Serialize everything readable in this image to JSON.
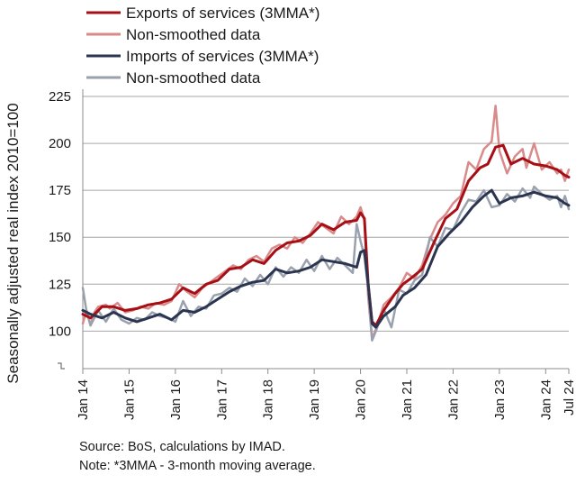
{
  "chart_data": {
    "type": "line",
    "title": "",
    "xlabel": "",
    "ylabel": "Seasonally adjusted real index 2010=100",
    "ylim": [
      80,
      225
    ],
    "yticks": [
      100,
      125,
      150,
      175,
      200,
      225
    ],
    "xlim": [
      "2014-01",
      "2024-07"
    ],
    "xticks": [
      {
        "date": "2014-01",
        "label": "Jan 14"
      },
      {
        "date": "2015-01",
        "label": "Jan 15"
      },
      {
        "date": "2016-01",
        "label": "Jan 16"
      },
      {
        "date": "2017-01",
        "label": "Jan 17"
      },
      {
        "date": "2018-01",
        "label": "Jan 18"
      },
      {
        "date": "2019-01",
        "label": "Jan 19"
      },
      {
        "date": "2020-01",
        "label": "Jan 20"
      },
      {
        "date": "2021-01",
        "label": "Jan 21"
      },
      {
        "date": "2022-01",
        "label": "Jan 22"
      },
      {
        "date": "2023-01",
        "label": "Jan 23"
      },
      {
        "date": "2024-01",
        "label": "Jan 24"
      },
      {
        "date": "2024-07",
        "label": "Jul 24"
      }
    ],
    "legend_position": "top-left",
    "grid": "horizontal",
    "series": [
      {
        "name": "Exports of services (3MMA*)",
        "color": "#a50f15",
        "width": 3,
        "points": [
          [
            "2014-01",
            109
          ],
          [
            "2014-03",
            107
          ],
          [
            "2014-06",
            113
          ],
          [
            "2014-09",
            113
          ],
          [
            "2014-12",
            111
          ],
          [
            "2015-03",
            112
          ],
          [
            "2015-06",
            114
          ],
          [
            "2015-09",
            115
          ],
          [
            "2015-12",
            117
          ],
          [
            "2016-03",
            123
          ],
          [
            "2016-06",
            120
          ],
          [
            "2016-09",
            125
          ],
          [
            "2016-12",
            127
          ],
          [
            "2017-03",
            133
          ],
          [
            "2017-06",
            134
          ],
          [
            "2017-09",
            138
          ],
          [
            "2017-12",
            136
          ],
          [
            "2018-03",
            143
          ],
          [
            "2018-06",
            147
          ],
          [
            "2018-09",
            148
          ],
          [
            "2018-12",
            151
          ],
          [
            "2019-03",
            157
          ],
          [
            "2019-06",
            154
          ],
          [
            "2019-09",
            158
          ],
          [
            "2019-12",
            159
          ],
          [
            "2020-01",
            163
          ],
          [
            "2020-02",
            160
          ],
          [
            "2020-03",
            125
          ],
          [
            "2020-04",
            105
          ],
          [
            "2020-05",
            103
          ],
          [
            "2020-07",
            111
          ],
          [
            "2020-10",
            120
          ],
          [
            "2020-12",
            125
          ],
          [
            "2021-02",
            128
          ],
          [
            "2021-05",
            133
          ],
          [
            "2021-08",
            147
          ],
          [
            "2021-11",
            160
          ],
          [
            "2022-02",
            165
          ],
          [
            "2022-05",
            180
          ],
          [
            "2022-08",
            187
          ],
          [
            "2022-10",
            189
          ],
          [
            "2022-12",
            198
          ],
          [
            "2023-02",
            199
          ],
          [
            "2023-04",
            189
          ],
          [
            "2023-07",
            192
          ],
          [
            "2023-10",
            189
          ],
          [
            "2024-01",
            188
          ],
          [
            "2024-04",
            186
          ],
          [
            "2024-06",
            183
          ],
          [
            "2024-07",
            182
          ]
        ]
      },
      {
        "name": "Non-smoothed data",
        "color": "#d98a8a",
        "width": 2.5,
        "points": [
          [
            "2014-01",
            104
          ],
          [
            "2014-02",
            111
          ],
          [
            "2014-03",
            103
          ],
          [
            "2014-04",
            110
          ],
          [
            "2014-05",
            113
          ],
          [
            "2014-07",
            114
          ],
          [
            "2014-08",
            112
          ],
          [
            "2014-10",
            115
          ],
          [
            "2014-12",
            110
          ],
          [
            "2015-02",
            111
          ],
          [
            "2015-04",
            113
          ],
          [
            "2015-06",
            112
          ],
          [
            "2015-08",
            115
          ],
          [
            "2015-10",
            114
          ],
          [
            "2015-12",
            116
          ],
          [
            "2016-02",
            125
          ],
          [
            "2016-04",
            121
          ],
          [
            "2016-06",
            118
          ],
          [
            "2016-08",
            123
          ],
          [
            "2016-10",
            126
          ],
          [
            "2016-12",
            129
          ],
          [
            "2017-02",
            132
          ],
          [
            "2017-04",
            135
          ],
          [
            "2017-06",
            133
          ],
          [
            "2017-08",
            138
          ],
          [
            "2017-10",
            140
          ],
          [
            "2017-12",
            137
          ],
          [
            "2018-02",
            144
          ],
          [
            "2018-04",
            146
          ],
          [
            "2018-06",
            144
          ],
          [
            "2018-08",
            150
          ],
          [
            "2018-10",
            147
          ],
          [
            "2018-12",
            152
          ],
          [
            "2019-02",
            158
          ],
          [
            "2019-04",
            155
          ],
          [
            "2019-06",
            152
          ],
          [
            "2019-08",
            161
          ],
          [
            "2019-10",
            157
          ],
          [
            "2019-12",
            161
          ],
          [
            "2020-01",
            166
          ],
          [
            "2020-02",
            159
          ],
          [
            "2020-03",
            118
          ],
          [
            "2020-04",
            96
          ],
          [
            "2020-05",
            101
          ],
          [
            "2020-07",
            114
          ],
          [
            "2020-09",
            118
          ],
          [
            "2020-11",
            123
          ],
          [
            "2021-01",
            131
          ],
          [
            "2021-03",
            128
          ],
          [
            "2021-05",
            135
          ],
          [
            "2021-07",
            149
          ],
          [
            "2021-09",
            158
          ],
          [
            "2021-11",
            162
          ],
          [
            "2022-01",
            168
          ],
          [
            "2022-03",
            172
          ],
          [
            "2022-05",
            190
          ],
          [
            "2022-07",
            186
          ],
          [
            "2022-09",
            197
          ],
          [
            "2022-11",
            201
          ],
          [
            "2022-12",
            220
          ],
          [
            "2023-01",
            196
          ],
          [
            "2023-03",
            184
          ],
          [
            "2023-05",
            193
          ],
          [
            "2023-07",
            197
          ],
          [
            "2023-08",
            187
          ],
          [
            "2023-10",
            200
          ],
          [
            "2023-12",
            186
          ],
          [
            "2024-02",
            190
          ],
          [
            "2024-04",
            184
          ],
          [
            "2024-05",
            186
          ],
          [
            "2024-06",
            180
          ],
          [
            "2024-07",
            186
          ]
        ]
      },
      {
        "name": "Imports of services (3MMA*)",
        "color": "#2b3550",
        "width": 3,
        "points": [
          [
            "2014-01",
            111
          ],
          [
            "2014-03",
            109
          ],
          [
            "2014-06",
            107
          ],
          [
            "2014-09",
            110
          ],
          [
            "2014-12",
            107
          ],
          [
            "2015-03",
            105
          ],
          [
            "2015-06",
            107
          ],
          [
            "2015-09",
            109
          ],
          [
            "2015-12",
            106
          ],
          [
            "2016-03",
            111
          ],
          [
            "2016-06",
            110
          ],
          [
            "2016-09",
            113
          ],
          [
            "2016-12",
            117
          ],
          [
            "2017-03",
            121
          ],
          [
            "2017-06",
            124
          ],
          [
            "2017-09",
            126
          ],
          [
            "2017-12",
            127
          ],
          [
            "2018-03",
            133
          ],
          [
            "2018-06",
            131
          ],
          [
            "2018-09",
            132
          ],
          [
            "2018-12",
            134
          ],
          [
            "2019-03",
            138
          ],
          [
            "2019-06",
            137
          ],
          [
            "2019-09",
            136
          ],
          [
            "2019-12",
            134
          ],
          [
            "2020-01",
            142
          ],
          [
            "2020-02",
            143
          ],
          [
            "2020-03",
            125
          ],
          [
            "2020-04",
            104
          ],
          [
            "2020-05",
            102
          ],
          [
            "2020-07",
            108
          ],
          [
            "2020-10",
            113
          ],
          [
            "2020-12",
            119
          ],
          [
            "2021-03",
            123
          ],
          [
            "2021-06",
            130
          ],
          [
            "2021-09",
            145
          ],
          [
            "2021-12",
            152
          ],
          [
            "2022-03",
            158
          ],
          [
            "2022-06",
            166
          ],
          [
            "2022-09",
            172
          ],
          [
            "2022-11",
            175
          ],
          [
            "2023-01",
            168
          ],
          [
            "2023-04",
            171
          ],
          [
            "2023-07",
            172
          ],
          [
            "2023-10",
            174
          ],
          [
            "2024-01",
            172
          ],
          [
            "2024-04",
            171
          ],
          [
            "2024-06",
            168
          ],
          [
            "2024-07",
            167
          ]
        ]
      },
      {
        "name": "Non-smoothed data",
        "color": "#9aa1ae",
        "width": 2.5,
        "points": [
          [
            "2014-01",
            123
          ],
          [
            "2014-02",
            110
          ],
          [
            "2014-03",
            103
          ],
          [
            "2014-05",
            111
          ],
          [
            "2014-07",
            105
          ],
          [
            "2014-09",
            112
          ],
          [
            "2014-11",
            106
          ],
          [
            "2015-01",
            104
          ],
          [
            "2015-03",
            107
          ],
          [
            "2015-05",
            106
          ],
          [
            "2015-07",
            110
          ],
          [
            "2015-09",
            108
          ],
          [
            "2015-11",
            107
          ],
          [
            "2016-01",
            105
          ],
          [
            "2016-03",
            116
          ],
          [
            "2016-05",
            108
          ],
          [
            "2016-07",
            113
          ],
          [
            "2016-09",
            112
          ],
          [
            "2016-11",
            119
          ],
          [
            "2017-01",
            120
          ],
          [
            "2017-03",
            123
          ],
          [
            "2017-05",
            121
          ],
          [
            "2017-07",
            128
          ],
          [
            "2017-09",
            124
          ],
          [
            "2017-11",
            130
          ],
          [
            "2018-01",
            125
          ],
          [
            "2018-03",
            134
          ],
          [
            "2018-05",
            129
          ],
          [
            "2018-07",
            134
          ],
          [
            "2018-09",
            131
          ],
          [
            "2018-11",
            138
          ],
          [
            "2019-01",
            132
          ],
          [
            "2019-03",
            140
          ],
          [
            "2019-05",
            133
          ],
          [
            "2019-07",
            139
          ],
          [
            "2019-09",
            135
          ],
          [
            "2019-11",
            131
          ],
          [
            "2019-12",
            157
          ],
          [
            "2020-01",
            148
          ],
          [
            "2020-02",
            140
          ],
          [
            "2020-03",
            122
          ],
          [
            "2020-04",
            95
          ],
          [
            "2020-05",
            100
          ],
          [
            "2020-07",
            112
          ],
          [
            "2020-09",
            102
          ],
          [
            "2020-11",
            122
          ],
          [
            "2021-01",
            120
          ],
          [
            "2021-03",
            127
          ],
          [
            "2021-05",
            130
          ],
          [
            "2021-07",
            150
          ],
          [
            "2021-09",
            145
          ],
          [
            "2021-11",
            155
          ],
          [
            "2022-01",
            154
          ],
          [
            "2022-03",
            163
          ],
          [
            "2022-05",
            170
          ],
          [
            "2022-07",
            169
          ],
          [
            "2022-09",
            175
          ],
          [
            "2022-11",
            166
          ],
          [
            "2023-01",
            167
          ],
          [
            "2023-03",
            173
          ],
          [
            "2023-05",
            169
          ],
          [
            "2023-07",
            176
          ],
          [
            "2023-09",
            171
          ],
          [
            "2023-10",
            177
          ],
          [
            "2023-12",
            173
          ],
          [
            "2024-02",
            170
          ],
          [
            "2024-04",
            172
          ],
          [
            "2024-05",
            166
          ],
          [
            "2024-06",
            172
          ],
          [
            "2024-07",
            165
          ]
        ]
      }
    ]
  },
  "footnotes": {
    "source": "Source: BoS, calculations by IMAD.",
    "note": "Note: *3MMA - 3-month moving average."
  }
}
